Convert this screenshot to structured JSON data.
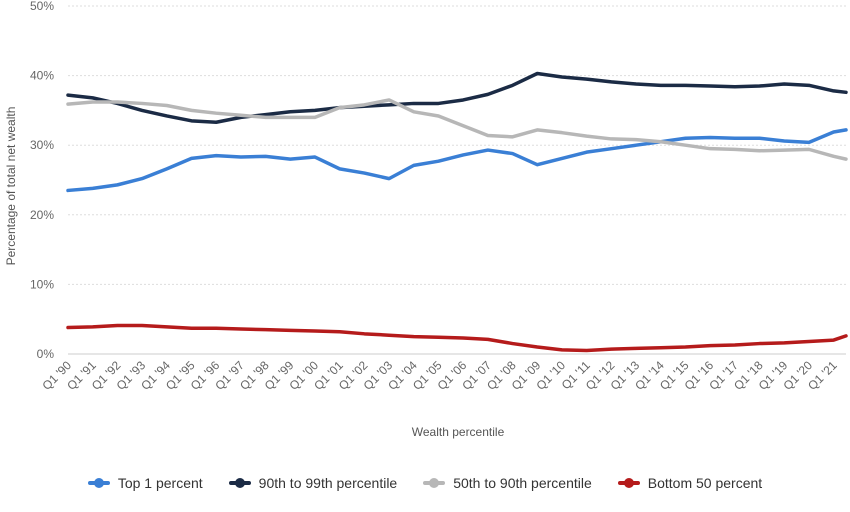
{
  "chart_data": {
    "type": "line",
    "xlabel": "Wealth percentile",
    "ylabel": "Percentage of total net wealth",
    "ylim": [
      0,
      50
    ],
    "yticks": [
      "0%",
      "10%",
      "20%",
      "30%",
      "40%",
      "50%"
    ],
    "x_ticks": [
      "Q1 '90",
      "Q1 '91",
      "Q1 '92",
      "Q1 '93",
      "Q1 '94",
      "Q1 '95",
      "Q1 '96",
      "Q1 '97",
      "Q1 '98",
      "Q1 '99",
      "Q1 '00",
      "Q1 '01",
      "Q1 '02",
      "Q1 '03",
      "Q1 '04",
      "Q1 '05",
      "Q1 '06",
      "Q1 '07",
      "Q1 '08",
      "Q1 '09",
      "Q1 '10",
      "Q1 '11",
      "Q1 '12",
      "Q1 '13",
      "Q1 '14",
      "Q1 '15",
      "Q1 '16",
      "Q1 '17",
      "Q1 '18",
      "Q1 '19",
      "Q1 '20",
      "Q1 '21"
    ],
    "x": [
      1990,
      1991,
      1992,
      1993,
      1994,
      1995,
      1996,
      1997,
      1998,
      1999,
      2000,
      2001,
      2002,
      2003,
      2004,
      2005,
      2006,
      2007,
      2008,
      2009,
      2010,
      2011,
      2012,
      2013,
      2014,
      2015,
      2016,
      2017,
      2018,
      2019,
      2020,
      2021,
      2021.5
    ],
    "grid": true,
    "legend_position": "bottom",
    "series": [
      {
        "name": "Top 1 percent",
        "color": "#3a7fd5",
        "values": [
          23.5,
          23.8,
          24.3,
          25.2,
          26.6,
          28.1,
          28.5,
          28.3,
          28.4,
          28.0,
          28.3,
          26.6,
          26.0,
          25.2,
          27.1,
          27.7,
          28.6,
          29.3,
          28.8,
          27.2,
          28.1,
          29.0,
          29.5,
          30.0,
          30.5,
          31.0,
          31.1,
          31.0,
          31.0,
          30.6,
          30.4,
          31.9,
          32.2
        ]
      },
      {
        "name": "90th to 99th percentile",
        "color": "#1b2b45",
        "values": [
          37.2,
          36.8,
          36.0,
          35.0,
          34.2,
          33.5,
          33.3,
          34.0,
          34.4,
          34.8,
          35.0,
          35.4,
          35.6,
          35.8,
          36.0,
          36.0,
          36.5,
          37.3,
          38.6,
          40.3,
          39.8,
          39.5,
          39.1,
          38.8,
          38.6,
          38.6,
          38.5,
          38.4,
          38.5,
          38.8,
          38.6,
          37.8,
          37.6
        ]
      },
      {
        "name": "50th to 90th percentile",
        "color": "#b7b7b7",
        "values": [
          35.9,
          36.2,
          36.2,
          36.0,
          35.7,
          35.0,
          34.6,
          34.3,
          34.0,
          34.0,
          34.0,
          35.4,
          35.8,
          36.5,
          34.8,
          34.2,
          32.8,
          31.4,
          31.2,
          32.2,
          31.8,
          31.3,
          30.9,
          30.8,
          30.5,
          30.0,
          29.5,
          29.4,
          29.2,
          29.3,
          29.4,
          28.4,
          28.0
        ]
      },
      {
        "name": "Bottom 50 percent",
        "color": "#b51b1b",
        "values": [
          3.8,
          3.9,
          4.1,
          4.1,
          3.9,
          3.7,
          3.7,
          3.6,
          3.5,
          3.4,
          3.3,
          3.2,
          2.9,
          2.7,
          2.5,
          2.4,
          2.3,
          2.1,
          1.5,
          1.0,
          0.6,
          0.5,
          0.7,
          0.8,
          0.9,
          1.0,
          1.2,
          1.3,
          1.5,
          1.6,
          1.8,
          2.0,
          2.6
        ]
      }
    ]
  }
}
